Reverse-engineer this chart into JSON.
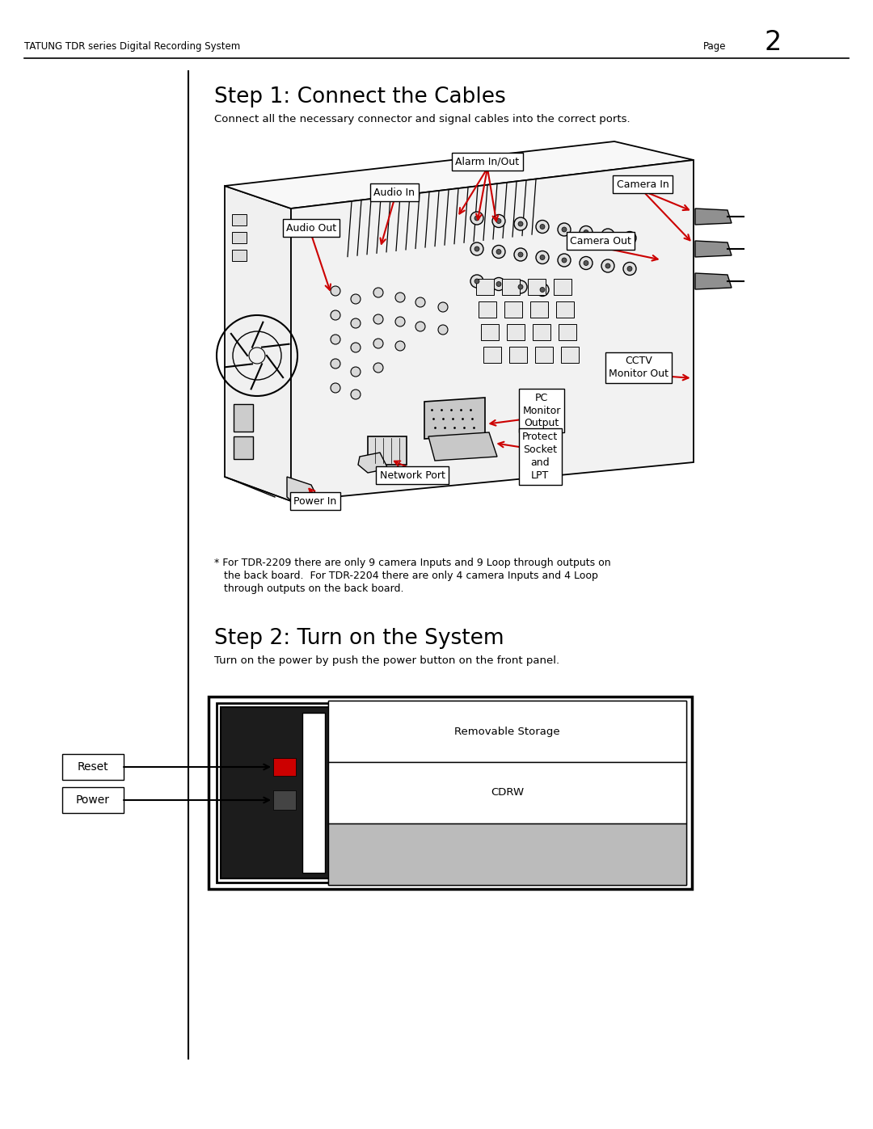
{
  "page_title_left": "TATUNG TDR series Digital Recording System",
  "page_title_right": "Page",
  "page_number": "2",
  "step1_title": "Step 1: Connect the Cables",
  "step1_subtitle": "Connect all the necessary connector and signal cables into the correct ports.",
  "step2_title": "Step 2: Turn on the System",
  "step2_subtitle": "Turn on the power by push the power button on the front panel.",
  "footnote_line1": "* For TDR-2209 there are only 9 camera Inputs and 9 Loop through outputs on",
  "footnote_line2": "   the back board.  For TDR-2204 there are only 4 camera Inputs and 4 Loop",
  "footnote_line3": "   through outputs on the back board.",
  "labels": {
    "alarm": "Alarm In/Out",
    "audio_in": "Audio In",
    "audio_out": "Audio Out",
    "camera_in": "Camera In",
    "camera_out": "Camera Out",
    "cctv_line1": "CCTV",
    "cctv_line2": "Monitor Out",
    "pc_line1": "PC",
    "pc_line2": "Monitor",
    "pc_line3": "Output",
    "protect_line1": "Protect",
    "protect_line2": "Socket",
    "protect_line3": "and",
    "protect_line4": "LPT",
    "network": "Network Port",
    "power_in": "Power In",
    "reset": "Reset",
    "power": "Power",
    "removable": "Removable Storage",
    "cdrw": "CDRW"
  },
  "bg_color": "#ffffff",
  "red_color": "#cc0000",
  "gray_color": "#bbbbbb",
  "dark_gray": "#444444",
  "med_gray": "#888888"
}
